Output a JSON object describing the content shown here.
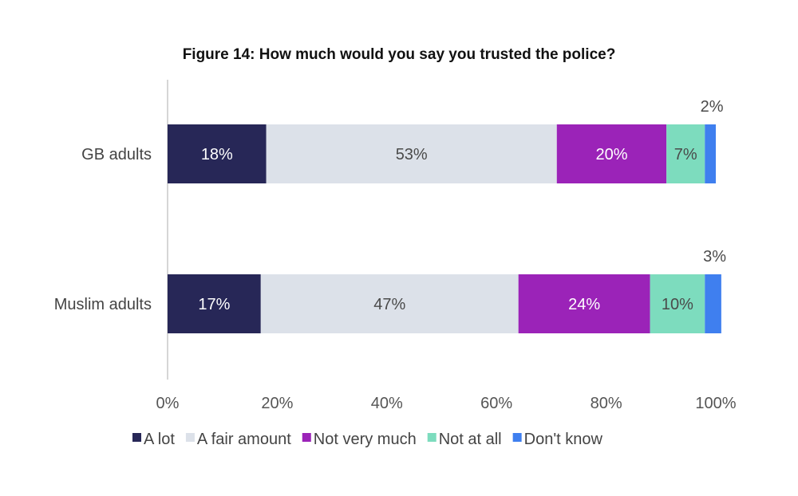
{
  "chart_data": {
    "type": "bar",
    "orientation": "horizontal",
    "stacked": true,
    "title": "Figure 14: How much would you say you trusted the police?",
    "xlabel": "",
    "ylabel": "",
    "xlim": [
      0,
      100
    ],
    "x_ticks": [
      "0%",
      "20%",
      "40%",
      "60%",
      "80%",
      "100%"
    ],
    "categories": [
      "GB adults",
      "Muslim adults"
    ],
    "series": [
      {
        "name": "A lot",
        "color": "#272757",
        "label_color": "#ffffff",
        "values": [
          18,
          17
        ],
        "labels": [
          "18%",
          "17%"
        ]
      },
      {
        "name": "A fair amount",
        "color": "#dce1e9",
        "label_color": "#4a4a4a",
        "values": [
          53,
          47
        ],
        "labels": [
          "53%",
          "47%"
        ]
      },
      {
        "name": "Not very much",
        "color": "#9b23b8",
        "label_color": "#ffffff",
        "values": [
          20,
          24
        ],
        "labels": [
          "20%",
          "24%"
        ]
      },
      {
        "name": "Not at all",
        "color": "#7ddcbe",
        "label_color": "#4a4a4a",
        "values": [
          7,
          10
        ],
        "labels": [
          "7%",
          "10%"
        ]
      },
      {
        "name": "Don't know",
        "color": "#3f7fef",
        "label_color": "#4a4a4a",
        "values": [
          2,
          3
        ],
        "labels": [
          "2%",
          "3%"
        ]
      }
    ],
    "legend_position": "bottom",
    "grid": false
  }
}
